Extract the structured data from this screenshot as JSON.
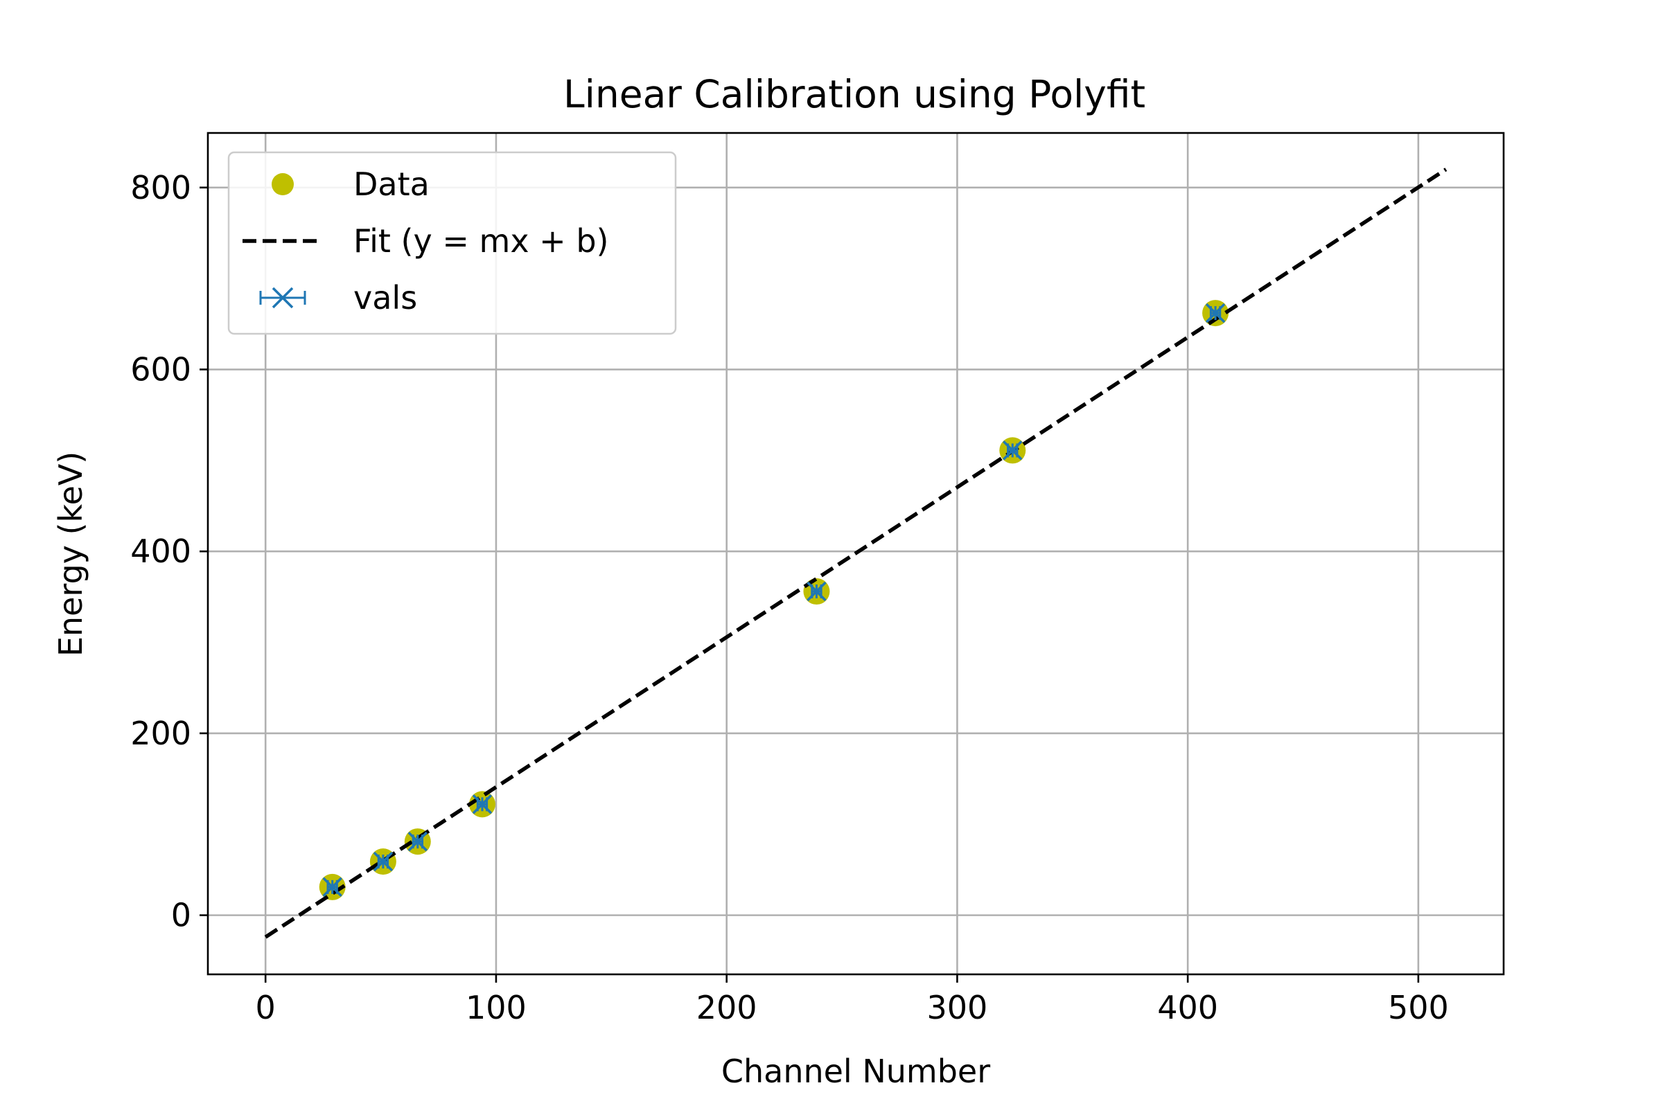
{
  "chart_data": {
    "type": "scatter",
    "title": "Linear Calibration using Polyfit",
    "xlabel": "Channel Number",
    "ylabel": "Energy (keV)",
    "xlim": [
      -25,
      537
    ],
    "ylim": [
      -65,
      860
    ],
    "xticks": [
      0,
      100,
      200,
      300,
      400,
      500
    ],
    "yticks": [
      0,
      200,
      400,
      600,
      800
    ],
    "xtick_labels": [
      "0",
      "100",
      "200",
      "300",
      "400",
      "500"
    ],
    "ytick_labels": [
      "0",
      "200",
      "400",
      "600",
      "800"
    ],
    "grid": true,
    "legend_position": "upper-left",
    "series": [
      {
        "name": "Data",
        "kind": "scatter",
        "marker": "circle",
        "color": "#bfbf00",
        "x": [
          29,
          51,
          66,
          94,
          239,
          324,
          412
        ],
        "y": [
          31,
          59,
          81,
          122,
          356,
          511,
          662
        ]
      },
      {
        "name": "Fit (y = mx + b)",
        "kind": "line",
        "style": "dashed",
        "color": "#000000",
        "x": [
          0,
          512
        ],
        "y": [
          -24,
          820
        ]
      },
      {
        "name": "vals",
        "kind": "errorbar",
        "marker": "x",
        "color": "#1f77b4",
        "x": [
          29,
          51,
          66,
          94,
          239,
          324,
          412
        ],
        "y": [
          31,
          59,
          81,
          122,
          356,
          511,
          662
        ],
        "xerr": [
          2,
          2,
          2,
          2,
          2,
          2,
          2
        ],
        "yerr": [
          1,
          1,
          1,
          1,
          1,
          1,
          1
        ]
      }
    ]
  }
}
